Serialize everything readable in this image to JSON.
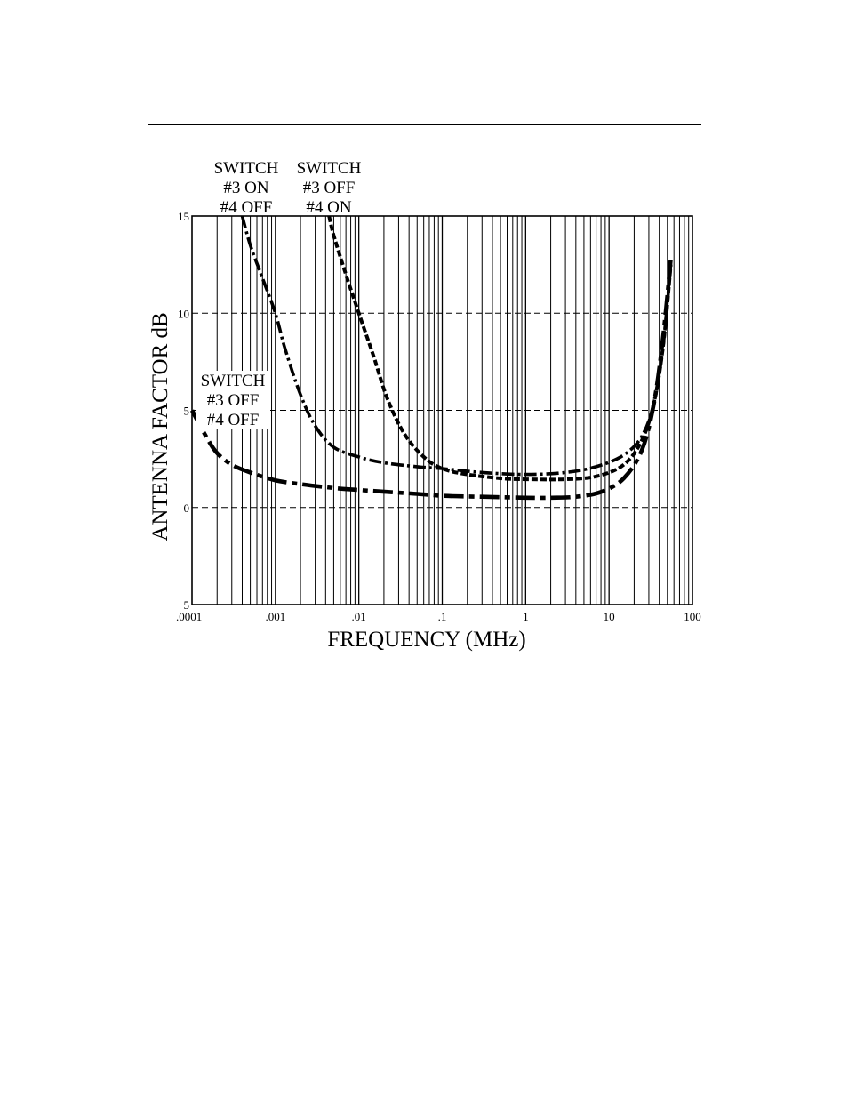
{
  "chart_data": {
    "type": "line",
    "title": "",
    "xlabel": "FREQUENCY (MHz)",
    "ylabel": "ANTENNA FACTOR  dB",
    "x_scale": "log",
    "xlim": [
      0.0001,
      100
    ],
    "ylim": [
      -5,
      15
    ],
    "x_tick_labels": [
      ".0001",
      ".001",
      ".01",
      ".1",
      "1",
      "10",
      "100"
    ],
    "y_tick_labels": [
      "15",
      "10",
      "5",
      "0",
      "−5"
    ],
    "grid": {
      "vertical_log_lines": true,
      "horizontal_dashed_at": [
        10,
        5,
        0
      ]
    },
    "annotations": [
      {
        "lines": [
          "SWITCH",
          "#3 ON",
          "#4 OFF"
        ],
        "series": "switch-3-on-4-off"
      },
      {
        "lines": [
          "SWITCH",
          "#3 OFF",
          "#4 ON"
        ],
        "series": "switch-3-off-4-on"
      },
      {
        "lines": [
          "SWITCH",
          "#3 OFF",
          "#4 OFF"
        ],
        "series": "switch-3-off-4-off"
      }
    ],
    "series": [
      {
        "name": "SWITCH #3 ON #4 OFF",
        "style": "dash-dot",
        "x": [
          0.0004,
          0.0005,
          0.0007,
          0.001,
          0.0013,
          0.002,
          0.003,
          0.005,
          0.01,
          0.02,
          0.05,
          0.1,
          0.3,
          1,
          3,
          7,
          15,
          25,
          35,
          45,
          55
        ],
        "y": [
          15,
          13.5,
          11.8,
          10,
          8.2,
          5.8,
          4.2,
          3.1,
          2.6,
          2.3,
          2.1,
          2.0,
          1.8,
          1.7,
          1.8,
          2.1,
          2.7,
          3.7,
          5.5,
          8.5,
          12.5
        ]
      },
      {
        "name": "SWITCH #3 OFF #4 ON",
        "style": "dashed",
        "x": [
          0.0044,
          0.005,
          0.007,
          0.01,
          0.015,
          0.022,
          0.035,
          0.06,
          0.1,
          0.2,
          0.5,
          1,
          3,
          7,
          15,
          25,
          35,
          45,
          55
        ],
        "y": [
          15,
          14,
          12,
          10,
          7.8,
          5.6,
          3.8,
          2.6,
          2.0,
          1.7,
          1.5,
          1.45,
          1.45,
          1.6,
          2.2,
          3.5,
          5.5,
          8.5,
          12.5
        ]
      },
      {
        "name": "SWITCH #3 OFF #4 OFF",
        "style": "long-dash-dot",
        "x": [
          0.0001,
          0.00015,
          0.0002,
          0.0003,
          0.0005,
          0.001,
          0.002,
          0.005,
          0.01,
          0.05,
          0.1,
          0.3,
          1,
          2,
          4,
          8,
          15,
          25,
          35,
          45,
          55
        ],
        "y": [
          5,
          3.6,
          2.8,
          2.2,
          1.8,
          1.4,
          1.2,
          1.0,
          0.9,
          0.7,
          0.6,
          0.55,
          0.5,
          0.5,
          0.55,
          0.8,
          1.5,
          3.0,
          5.5,
          9.0,
          12.8
        ]
      }
    ]
  }
}
